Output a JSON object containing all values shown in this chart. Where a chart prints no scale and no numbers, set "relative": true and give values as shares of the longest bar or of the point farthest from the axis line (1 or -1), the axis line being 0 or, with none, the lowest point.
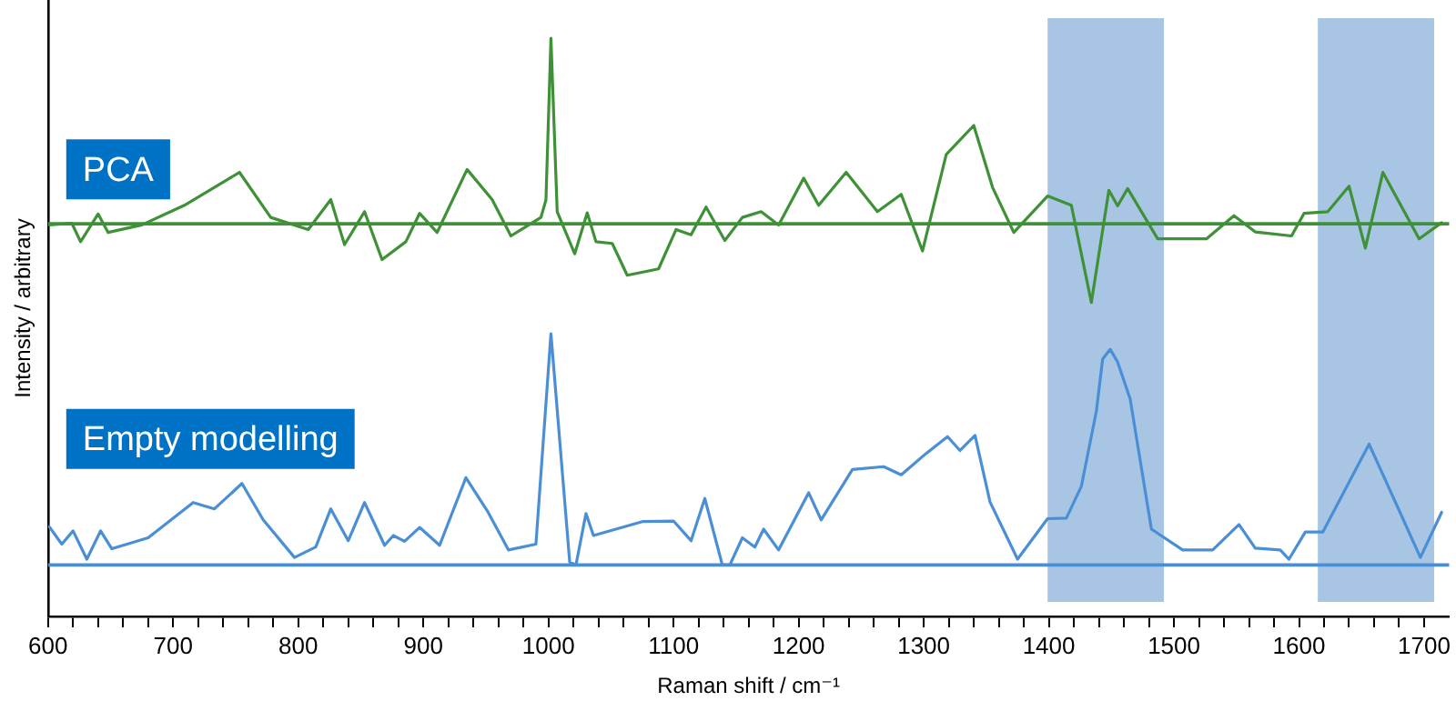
{
  "chart_data": {
    "type": "line",
    "relative": true,
    "xlabel": "Raman shift / cm⁻¹",
    "ylabel": "Intensity / arbitrary",
    "xlim": [
      600,
      1720
    ],
    "xticks": [
      600,
      {
        "value": 620,
        "label": null
      },
      {
        "value": 640,
        "label": null
      },
      {
        "value": 660,
        "label": null
      },
      {
        "value": 680,
        "label": null
      },
      700,
      {
        "value": 720,
        "label": null
      },
      {
        "value": 740,
        "label": null
      },
      {
        "value": 760,
        "label": null
      },
      {
        "value": 780,
        "label": null
      },
      800,
      {
        "value": 820,
        "label": null
      },
      {
        "value": 840,
        "label": null
      },
      {
        "value": 860,
        "label": null
      },
      {
        "value": 880,
        "label": null
      },
      900,
      {
        "value": 920,
        "label": null
      },
      {
        "value": 940,
        "label": null
      },
      {
        "value": 960,
        "label": null
      },
      {
        "value": 980,
        "label": null
      },
      1000,
      {
        "value": 1020,
        "label": null
      },
      {
        "value": 1040,
        "label": null
      },
      {
        "value": 1060,
        "label": null
      },
      {
        "value": 1080,
        "label": null
      },
      1100,
      {
        "value": 1120,
        "label": null
      },
      {
        "value": 1140,
        "label": null
      },
      {
        "value": 1160,
        "label": null
      },
      {
        "value": 1180,
        "label": null
      },
      1200,
      {
        "value": 1220,
        "label": null
      },
      {
        "value": 1240,
        "label": null
      },
      {
        "value": 1260,
        "label": null
      },
      {
        "value": 1280,
        "label": null
      },
      1300,
      {
        "value": 1320,
        "label": null
      },
      {
        "value": 1340,
        "label": null
      },
      {
        "value": 1360,
        "label": null
      },
      {
        "value": 1380,
        "label": null
      },
      1400,
      {
        "value": 1420,
        "label": null
      },
      {
        "value": 1440,
        "label": null
      },
      {
        "value": 1460,
        "label": null
      },
      {
        "value": 1480,
        "label": null
      },
      1500,
      {
        "value": 1520,
        "label": null
      },
      {
        "value": 1540,
        "label": null
      },
      {
        "value": 1560,
        "label": null
      },
      {
        "value": 1580,
        "label": null
      },
      1600,
      {
        "value": 1620,
        "label": null
      },
      {
        "value": 1640,
        "label": null
      },
      {
        "value": 1660,
        "label": null
      },
      {
        "value": 1680,
        "label": null
      },
      1700
    ],
    "grid": false,
    "legend": false,
    "marker": "none",
    "line_style": "solid",
    "series": [
      {
        "name": "PCA",
        "color": "#3f9138",
        "x": [
          601,
          619,
          626,
          640,
          648,
          675,
          709,
          753,
          778,
          808,
          826,
          837,
          853,
          867,
          886,
          897,
          911,
          935,
          955,
          970,
          994,
          998,
          1002,
          1007,
          1021,
          1031,
          1038,
          1051,
          1063,
          1088,
          1102,
          1114,
          1126,
          1141,
          1155,
          1170,
          1184,
          1204,
          1216,
          1238,
          1263,
          1282,
          1299,
          1318,
          1340,
          1355,
          1372,
          1399,
          1418,
          1434,
          1448,
          1455,
          1463,
          1487,
          1526,
          1548,
          1565,
          1594,
          1604,
          1623,
          1640,
          1653,
          1667,
          1696,
          1714
        ],
        "values": [
          0.677,
          0.68,
          0.648,
          0.696,
          0.664,
          0.677,
          0.711,
          0.768,
          0.69,
          0.669,
          0.721,
          0.643,
          0.7,
          0.617,
          0.648,
          0.697,
          0.664,
          0.773,
          0.721,
          0.658,
          0.69,
          0.72,
          1.0,
          0.7,
          0.627,
          0.698,
          0.648,
          0.645,
          0.59,
          0.601,
          0.669,
          0.66,
          0.708,
          0.65,
          0.69,
          0.7,
          0.677,
          0.758,
          0.711,
          0.768,
          0.7,
          0.73,
          0.632,
          0.799,
          0.849,
          0.742,
          0.664,
          0.727,
          0.711,
          0.543,
          0.737,
          0.71,
          0.74,
          0.653,
          0.653,
          0.693,
          0.665,
          0.658,
          0.697,
          0.7,
          0.744,
          0.637,
          0.768,
          0.653,
          0.681
        ]
      },
      {
        "name": "Empty modelling",
        "color": "#4a8fd6",
        "x": [
          601,
          611,
          620,
          631,
          642,
          651,
          680,
          716,
          733,
          755,
          772,
          797,
          814,
          826,
          840,
          853,
          869,
          876,
          885,
          897,
          913,
          934,
          951,
          968,
          990,
          1002,
          1017,
          1022,
          1030,
          1036,
          1075,
          1100,
          1114,
          1125,
          1139,
          1145,
          1155,
          1165,
          1172,
          1184,
          1208,
          1218,
          1243,
          1268,
          1282,
          1302,
          1319,
          1329,
          1341,
          1353,
          1375,
          1399,
          1414,
          1426,
          1438,
          1443,
          1449,
          1455,
          1465,
          1482,
          1507,
          1531,
          1552,
          1565,
          1585,
          1592,
          1605,
          1619,
          1656,
          1678,
          1697,
          1714
        ],
        "values": [
          0.155,
          0.125,
          0.148,
          0.099,
          0.148,
          0.117,
          0.136,
          0.197,
          0.186,
          0.23,
          0.167,
          0.102,
          0.12,
          0.186,
          0.131,
          0.197,
          0.123,
          0.14,
          0.13,
          0.154,
          0.123,
          0.24,
          0.183,
          0.115,
          0.125,
          0.489,
          0.094,
          0.089,
          0.178,
          0.14,
          0.164,
          0.165,
          0.131,
          0.204,
          0.089,
          0.089,
          0.136,
          0.12,
          0.151,
          0.115,
          0.214,
          0.167,
          0.254,
          0.259,
          0.245,
          0.282,
          0.311,
          0.287,
          0.313,
          0.198,
          0.099,
          0.169,
          0.17,
          0.225,
          0.355,
          0.445,
          0.462,
          0.44,
          0.376,
          0.151,
          0.115,
          0.115,
          0.159,
          0.118,
          0.115,
          0.099,
          0.146,
          0.146,
          0.298,
          0.193,
          0.102,
          0.18
        ]
      }
    ],
    "ref_lines": [
      {
        "axis": "y",
        "value": 0.679,
        "color": "#3f9138"
      },
      {
        "axis": "y",
        "value": 0.089,
        "color": "#4a8fd6"
      }
    ],
    "bands": [
      {
        "axis": "x",
        "from": 1399,
        "to": 1492,
        "color": "#a8c6e4"
      },
      {
        "axis": "x",
        "from": 1615,
        "to": 1708,
        "color": "#a8c6e4"
      }
    ]
  }
}
